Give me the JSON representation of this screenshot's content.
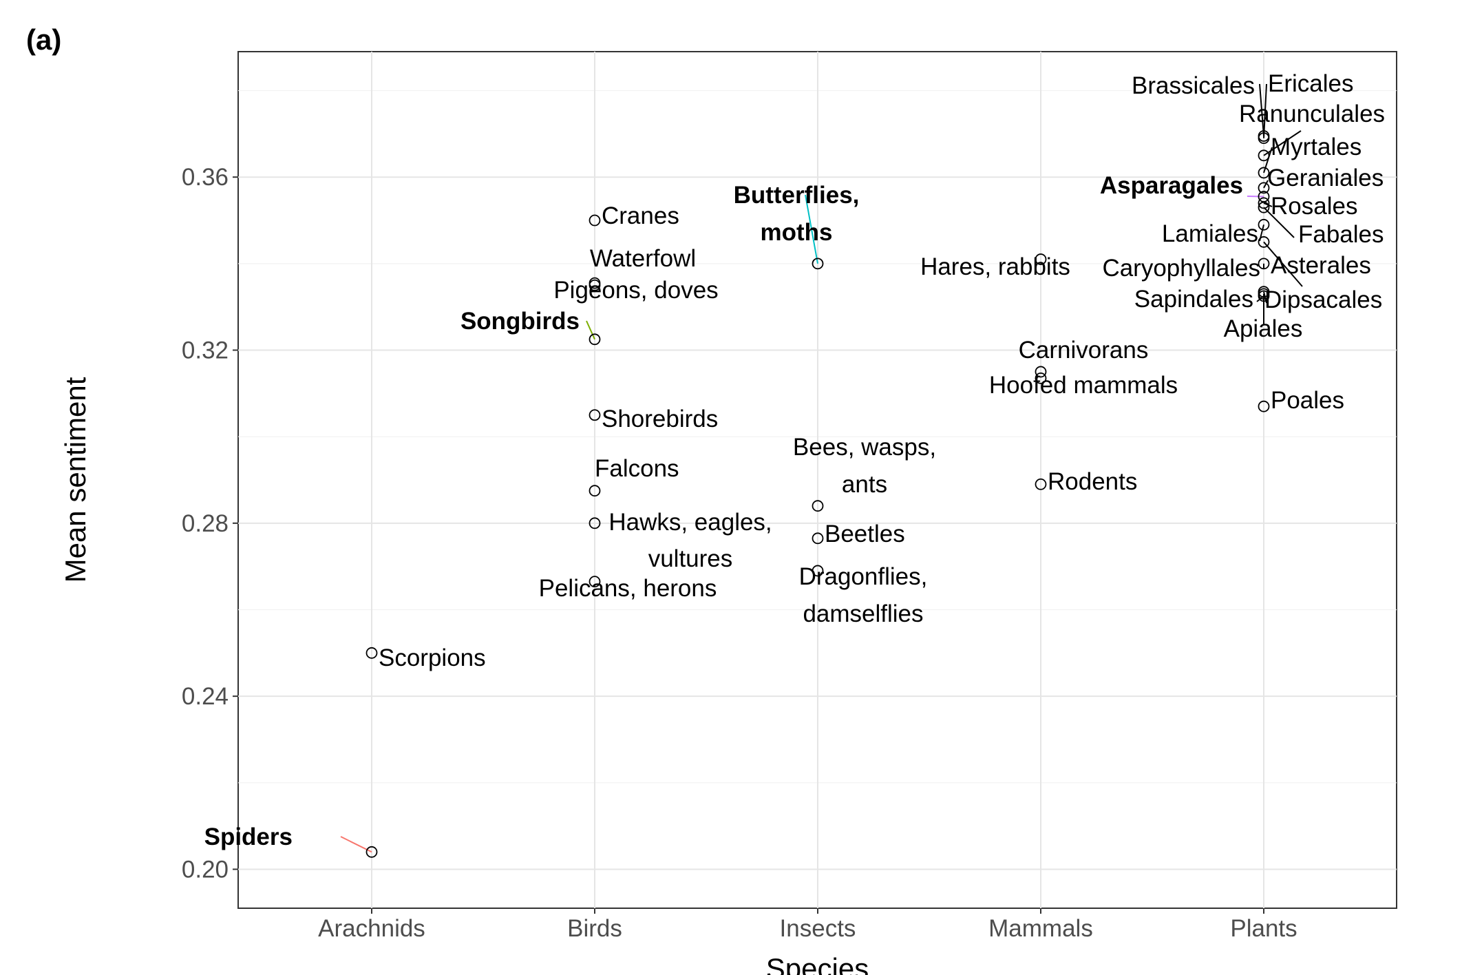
{
  "panel_label": "(a)",
  "chart_data": {
    "type": "scatter",
    "title": "",
    "xlabel": "Species",
    "ylabel": "Mean sentiment",
    "categories": [
      "Arachnids",
      "Birds",
      "Insects",
      "Mammals",
      "Plants"
    ],
    "yticks": [
      "0.20",
      "0.24",
      "0.28",
      "0.32",
      "0.36"
    ],
    "ylim": [
      0.191,
      0.389
    ],
    "grid": true,
    "legend": "none",
    "colors": {
      "Spiders": "#f8766d",
      "Songbirds": "#7cae00",
      "Butterflies, moths": "#00bfc4",
      "Asparagales": "#c77cff",
      "default": "#000000"
    },
    "points": [
      {
        "category": "Arachnids",
        "y": 0.204,
        "label": "Spiders",
        "highlight": true
      },
      {
        "category": "Arachnids",
        "y": 0.25,
        "label": "Scorpions"
      },
      {
        "category": "Birds",
        "y": 0.35,
        "label": "Cranes"
      },
      {
        "category": "Birds",
        "y": 0.3355,
        "label": "Waterfowl"
      },
      {
        "category": "Birds",
        "y": 0.335,
        "label": "Pigeons, doves"
      },
      {
        "category": "Birds",
        "y": 0.3225,
        "label": "Songbirds",
        "highlight": true
      },
      {
        "category": "Birds",
        "y": 0.305,
        "label": "Shorebirds"
      },
      {
        "category": "Birds",
        "y": 0.2875,
        "label": "Falcons"
      },
      {
        "category": "Birds",
        "y": 0.28,
        "label": "Hawks, eagles, vultures"
      },
      {
        "category": "Birds",
        "y": 0.2665,
        "label": "Pelicans, herons"
      },
      {
        "category": "Insects",
        "y": 0.34,
        "label": "Butterflies, moths",
        "highlight": true
      },
      {
        "category": "Insects",
        "y": 0.284,
        "label": "Bees, wasps, ants"
      },
      {
        "category": "Insects",
        "y": 0.2765,
        "label": "Beetles"
      },
      {
        "category": "Insects",
        "y": 0.269,
        "label": "Dragonflies, damselflies"
      },
      {
        "category": "Mammals",
        "y": 0.341,
        "label": "Hares, rabbits"
      },
      {
        "category": "Mammals",
        "y": 0.315,
        "label": "Carnivorans"
      },
      {
        "category": "Mammals",
        "y": 0.3135,
        "label": "Hoofed mammals"
      },
      {
        "category": "Mammals",
        "y": 0.289,
        "label": "Rodents"
      },
      {
        "category": "Plants",
        "y": 0.3695,
        "label": "Brassicales"
      },
      {
        "category": "Plants",
        "y": 0.369,
        "label": "Ericales"
      },
      {
        "category": "Plants",
        "y": 0.365,
        "label": "Ranunculales"
      },
      {
        "category": "Plants",
        "y": 0.361,
        "label": "Myrtales"
      },
      {
        "category": "Plants",
        "y": 0.3575,
        "label": "Geraniales"
      },
      {
        "category": "Plants",
        "y": 0.3555,
        "label": "Asparagales",
        "highlight": true
      },
      {
        "category": "Plants",
        "y": 0.354,
        "label": "Rosales"
      },
      {
        "category": "Plants",
        "y": 0.353,
        "label": "Fabales"
      },
      {
        "category": "Plants",
        "y": 0.349,
        "label": "Lamiales"
      },
      {
        "category": "Plants",
        "y": 0.345,
        "label": "Asterales"
      },
      {
        "category": "Plants",
        "y": 0.34,
        "label": "Caryophyllales"
      },
      {
        "category": "Plants",
        "y": 0.3335,
        "label": "Dipsacales"
      },
      {
        "category": "Plants",
        "y": 0.3325,
        "label": "Sapindales"
      },
      {
        "category": "Plants",
        "y": 0.333,
        "label": "Apiales"
      },
      {
        "category": "Plants",
        "y": 0.307,
        "label": "Poales"
      }
    ]
  }
}
